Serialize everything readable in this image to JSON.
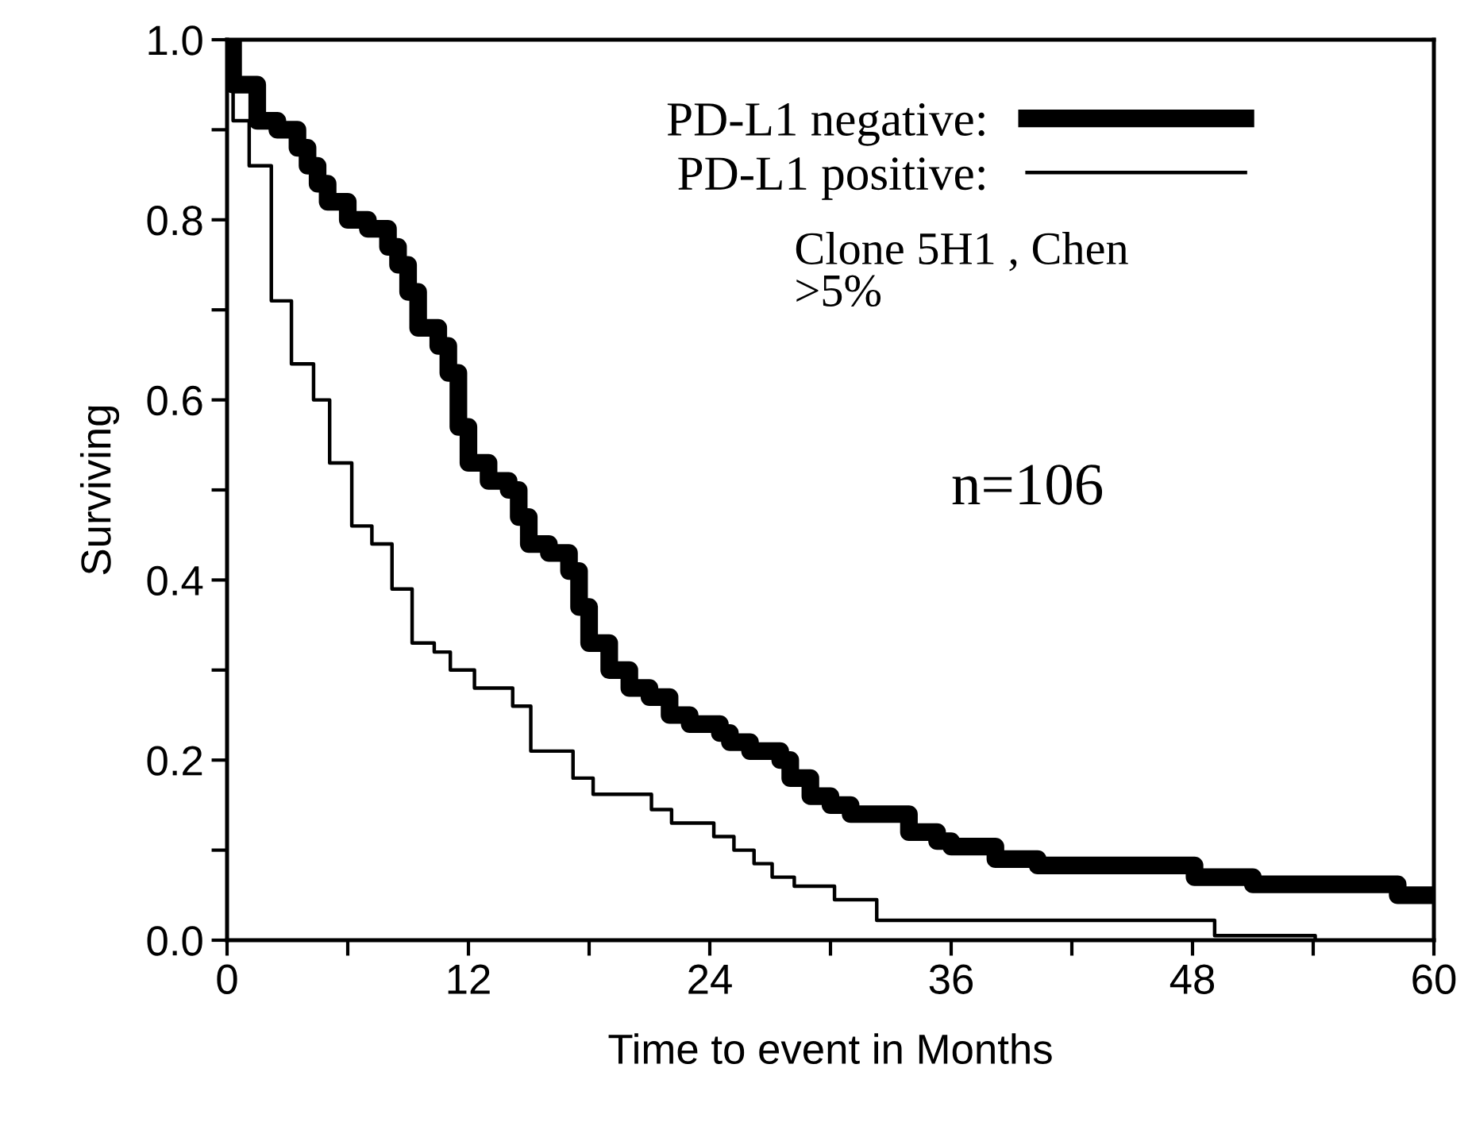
{
  "chart_data": {
    "type": "step",
    "xlabel": "Time to event in Months",
    "ylabel": "Surviving",
    "xlim": [
      0,
      60
    ],
    "ylim": [
      0,
      1
    ],
    "xticks": [
      0,
      {
        "value": 6,
        "label": null
      },
      12,
      {
        "value": 18,
        "label": null
      },
      24,
      {
        "value": 30,
        "label": null
      },
      36,
      {
        "value": 42,
        "label": null
      },
      48,
      {
        "value": 54,
        "label": null
      },
      60
    ],
    "yticks": [
      {
        "value": 0,
        "label": "0.0"
      },
      {
        "value": 0.1,
        "label": null
      },
      {
        "value": 0.2,
        "label": "0.2"
      },
      {
        "value": 0.3,
        "label": null
      },
      {
        "value": 0.4,
        "label": "0.4"
      },
      {
        "value": 0.5,
        "label": null
      },
      {
        "value": 0.6,
        "label": "0.6"
      },
      {
        "value": 0.7,
        "label": null
      },
      {
        "value": 0.8,
        "label": "0.8"
      },
      {
        "value": 0.9,
        "label": null
      },
      {
        "value": 1,
        "label": "1.0"
      }
    ],
    "grid": false,
    "legend": "top right",
    "series": [
      {
        "name": "PD-L1 negative:",
        "color": "#000000",
        "x": [
          0,
          0.3,
          1.5,
          2.5,
          3.5,
          4,
          4.5,
          5,
          6,
          7,
          8,
          8.5,
          9,
          9.5,
          10.5,
          11,
          11.5,
          12,
          13,
          14,
          14.5,
          15,
          16,
          17,
          17.5,
          18,
          19,
          20,
          21,
          22,
          23,
          24.5,
          25,
          26,
          27.5,
          28,
          29,
          30,
          31,
          33.9,
          35.3,
          36,
          38.2,
          40.3,
          48.1,
          51,
          58.2,
          60
        ],
        "values": [
          1.0,
          0.95,
          0.91,
          0.9,
          0.88,
          0.86,
          0.84,
          0.82,
          0.8,
          0.79,
          0.77,
          0.75,
          0.72,
          0.68,
          0.66,
          0.63,
          0.57,
          0.53,
          0.51,
          0.5,
          0.47,
          0.44,
          0.43,
          0.41,
          0.37,
          0.33,
          0.3,
          0.28,
          0.27,
          0.25,
          0.24,
          0.23,
          0.22,
          0.21,
          0.2,
          0.18,
          0.16,
          0.15,
          0.14,
          0.12,
          0.11,
          0.104,
          0.09,
          0.083,
          0.07,
          0.062,
          0.05,
          0.05
        ]
      },
      {
        "name": "PD-L1 positive:",
        "color": "#000000",
        "x": [
          0,
          0.3,
          1.1,
          2.2,
          3.2,
          4.3,
          5.1,
          6.2,
          7.2,
          8.2,
          9.2,
          10.3,
          11.1,
          12.3,
          14.2,
          15.1,
          17.2,
          18.2,
          21.1,
          22.1,
          24.2,
          25.2,
          26.2,
          27.1,
          28.2,
          30.2,
          32.3,
          49.1,
          54.1
        ],
        "values": [
          1.0,
          0.91,
          0.86,
          0.71,
          0.64,
          0.6,
          0.53,
          0.46,
          0.44,
          0.39,
          0.33,
          0.32,
          0.3,
          0.28,
          0.26,
          0.21,
          0.18,
          0.162,
          0.145,
          0.13,
          0.115,
          0.1,
          0.085,
          0.07,
          0.06,
          0.045,
          0.022,
          0.005,
          0
        ]
      }
    ],
    "annotations": [
      "Clone 5H1 , Chen\n>5%",
      "n=106"
    ]
  }
}
